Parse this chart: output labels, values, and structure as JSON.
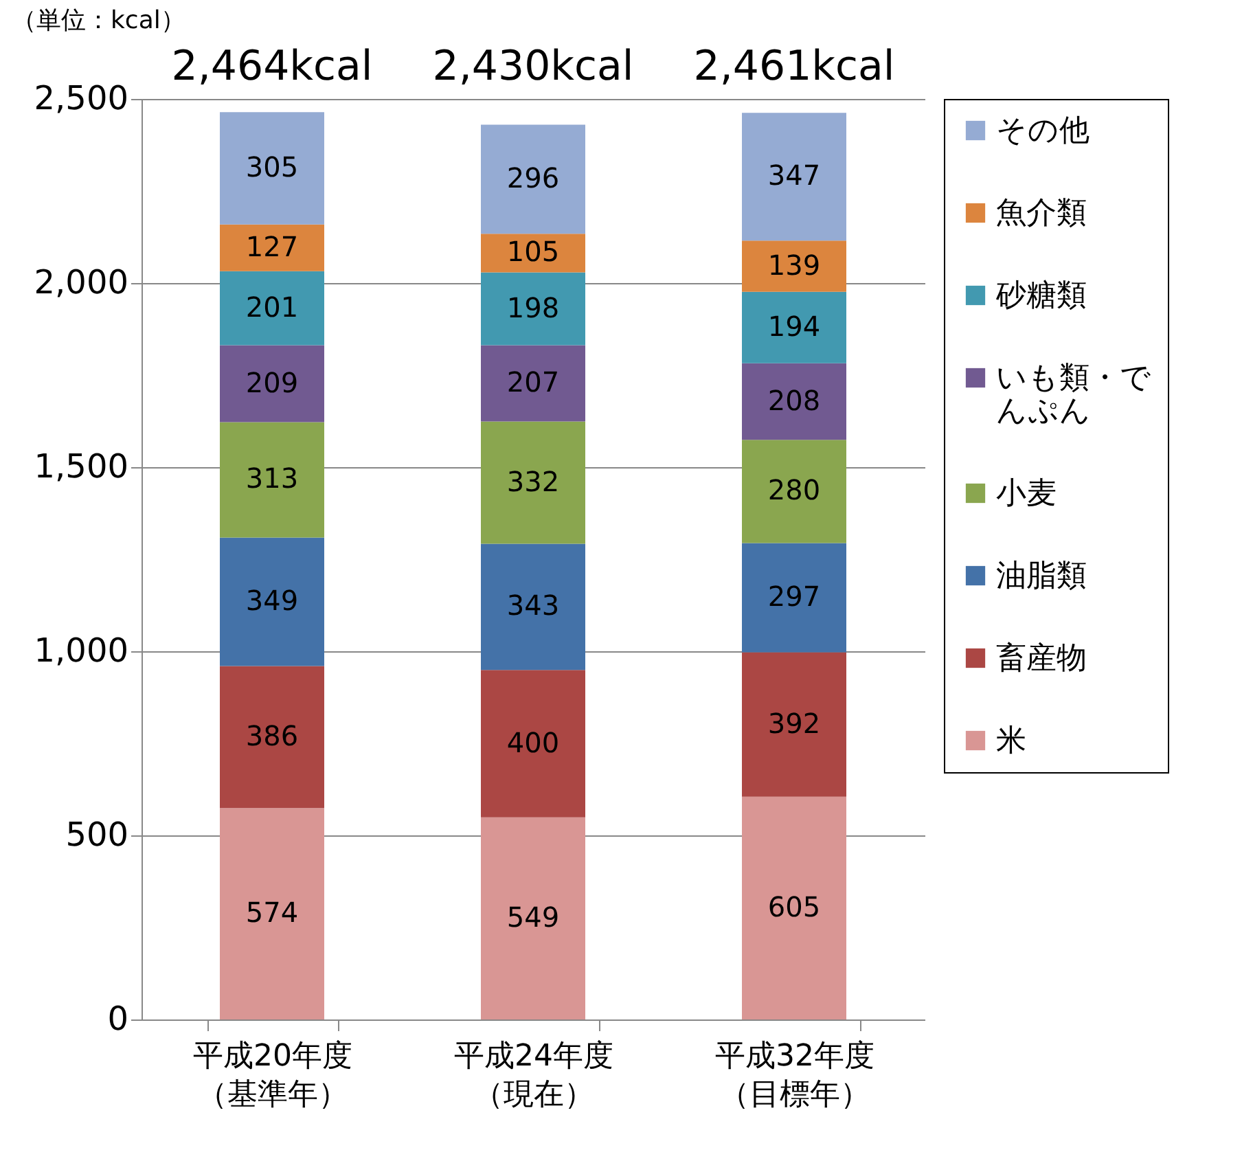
{
  "chart_data": {
    "type": "bar",
    "stacked": true,
    "ylabel": "（単位：kcal）",
    "categories": [
      "平成20年度（基準年）",
      "平成24年度（現在）",
      "平成32年度（目標年）"
    ],
    "series": [
      {
        "name": "米",
        "color": "#d99694",
        "values": [
          574,
          549,
          605
        ]
      },
      {
        "name": "畜産物",
        "color": "#ab4744",
        "values": [
          386,
          400,
          392
        ]
      },
      {
        "name": "油脂類",
        "color": "#4472a8",
        "values": [
          349,
          343,
          297
        ]
      },
      {
        "name": "小麦",
        "color": "#8aa64f",
        "values": [
          313,
          332,
          280
        ]
      },
      {
        "name": "いも類・でんぷん",
        "color": "#715a91",
        "values": [
          209,
          207,
          208
        ]
      },
      {
        "name": "砂糖類",
        "color": "#4299b0",
        "values": [
          201,
          198,
          194
        ]
      },
      {
        "name": "魚介類",
        "color": "#dc853e",
        "values": [
          127,
          105,
          139
        ]
      },
      {
        "name": "その他",
        "color": "#95abd3",
        "values": [
          305,
          296,
          347
        ]
      }
    ],
    "totals": [
      "2,464kcal",
      "2,430kcal",
      "2,461kcal"
    ],
    "ylim": [
      0,
      2500
    ],
    "yticks": [
      0,
      500,
      {
        "value": 1000,
        "label": "1,000"
      },
      {
        "value": 1500,
        "label": "1,500"
      },
      {
        "value": 2000,
        "label": "2,000"
      },
      {
        "value": 2500,
        "label": "2,500"
      }
    ],
    "grid": "y",
    "data_labels": true,
    "legend": "right"
  }
}
